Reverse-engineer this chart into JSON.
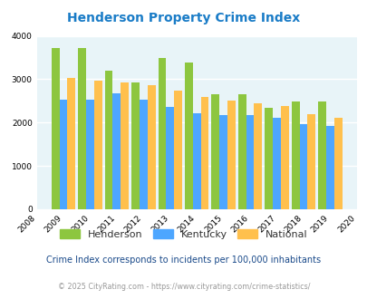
{
  "title": "Henderson Property Crime Index",
  "years": [
    2009,
    2010,
    2011,
    2012,
    2013,
    2014,
    2015,
    2016,
    2017,
    2018,
    2019
  ],
  "henderson": [
    3730,
    3730,
    3190,
    2920,
    3490,
    3390,
    2650,
    2650,
    2340,
    2480,
    2490
  ],
  "kentucky": [
    2520,
    2530,
    2680,
    2530,
    2360,
    2220,
    2170,
    2165,
    2120,
    1960,
    1920
  ],
  "national": [
    3040,
    2960,
    2920,
    2870,
    2730,
    2600,
    2510,
    2450,
    2380,
    2200,
    2110
  ],
  "henderson_color": "#8dc63f",
  "kentucky_color": "#4da6ff",
  "national_color": "#ffc04d",
  "bg_color": "#e8f4f8",
  "xlim": [
    2008,
    2020
  ],
  "ylim": [
    0,
    4000
  ],
  "yticks": [
    0,
    1000,
    2000,
    3000,
    4000
  ],
  "xticks": [
    2008,
    2009,
    2010,
    2011,
    2012,
    2013,
    2014,
    2015,
    2016,
    2017,
    2018,
    2019,
    2020
  ],
  "bar_width": 0.3,
  "legend_labels": [
    "Henderson",
    "Kentucky",
    "National"
  ],
  "note": "Crime Index corresponds to incidents per 100,000 inhabitants",
  "footer": "© 2025 CityRating.com - https://www.cityrating.com/crime-statistics/",
  "title_color": "#1a7cc7",
  "note_color": "#1a4a8a",
  "footer_color": "#999999",
  "legend_text_color": "#333333"
}
